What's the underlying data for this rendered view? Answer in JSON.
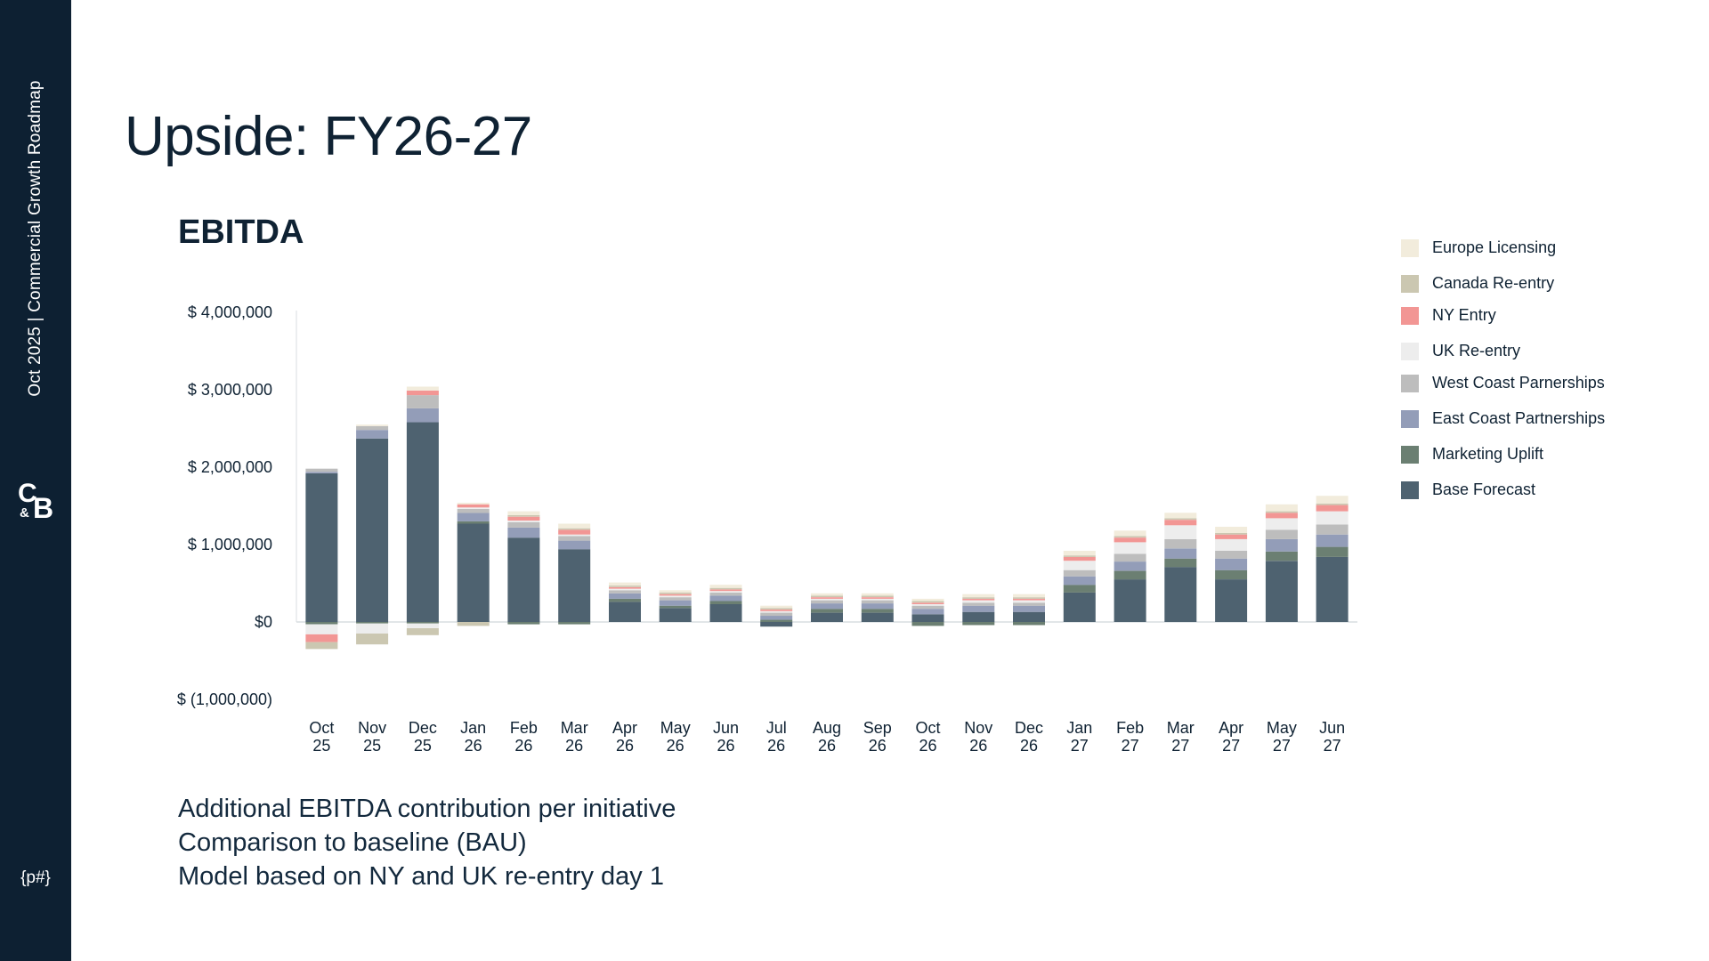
{
  "sidebar": {
    "title": "Oct 2025 | Commercial Growth Roadmap",
    "logo": {
      "c": "C",
      "amp": "&",
      "b": "B"
    },
    "page_number": "{p#}"
  },
  "page": {
    "title": "Upside: FY26-27",
    "chart_heading": "EBITDA",
    "notes": [
      "Additional EBITDA contribution per initiative",
      "Comparison to baseline (BAU)",
      "Model based on NY and UK re-entry day 1"
    ]
  },
  "chart_data": {
    "type": "bar",
    "stacked": true,
    "title": "EBITDA",
    "xlabel": "",
    "ylabel": "",
    "ylim": [
      -1000000,
      4000000
    ],
    "y_ticks": [
      4000000,
      3000000,
      2000000,
      1000000,
      0,
      -1000000
    ],
    "y_tick_labels": [
      "$ 4,000,000",
      "$ 3,000,000",
      "$ 2,000,000",
      "$ 1,000,000",
      "$0",
      "$ (1,000,000)"
    ],
    "categories": [
      [
        "Oct",
        "25"
      ],
      [
        "Nov",
        "25"
      ],
      [
        "Dec",
        "25"
      ],
      [
        "Jan",
        "26"
      ],
      [
        "Feb",
        "26"
      ],
      [
        "Mar",
        "26"
      ],
      [
        "Apr",
        "26"
      ],
      [
        "May",
        "26"
      ],
      [
        "Jun",
        "26"
      ],
      [
        "Jul",
        "26"
      ],
      [
        "Aug",
        "26"
      ],
      [
        "Sep",
        "26"
      ],
      [
        "Oct",
        "26"
      ],
      [
        "Nov",
        "26"
      ],
      [
        "Dec",
        "26"
      ],
      [
        "Jan",
        "27"
      ],
      [
        "Feb",
        "27"
      ],
      [
        "Mar",
        "27"
      ],
      [
        "Apr",
        "27"
      ],
      [
        "May",
        "27"
      ],
      [
        "Jun",
        "27"
      ]
    ],
    "legend_position": "right",
    "series": [
      {
        "name": "Base Forecast",
        "color": "#4e6270",
        "values": [
          1920000,
          2370000,
          2580000,
          1270000,
          1090000,
          940000,
          260000,
          180000,
          230000,
          -60000,
          120000,
          120000,
          100000,
          130000,
          130000,
          380000,
          550000,
          710000,
          550000,
          790000,
          840000
        ]
      },
      {
        "name": "Marketing Uplift",
        "color": "#6b7f72",
        "values": [
          -30000,
          -20000,
          -20000,
          30000,
          -30000,
          -30000,
          40000,
          30000,
          40000,
          30000,
          50000,
          50000,
          -50000,
          -40000,
          -40000,
          100000,
          110000,
          110000,
          120000,
          120000,
          130000
        ]
      },
      {
        "name": "East Coast Partnerships",
        "color": "#939db8",
        "values": [
          20000,
          110000,
          180000,
          110000,
          130000,
          110000,
          70000,
          70000,
          70000,
          50000,
          70000,
          70000,
          70000,
          80000,
          80000,
          110000,
          120000,
          130000,
          150000,
          160000,
          160000
        ]
      },
      {
        "name": "West Coast Parnerships",
        "color": "#bdbdbd",
        "values": [
          40000,
          50000,
          170000,
          50000,
          70000,
          60000,
          40000,
          40000,
          40000,
          40000,
          40000,
          40000,
          40000,
          40000,
          40000,
          80000,
          100000,
          120000,
          100000,
          120000,
          130000
        ]
      },
      {
        "name": "UK Re-entry",
        "color": "#ededed",
        "values": [
          -130000,
          -130000,
          -60000,
          20000,
          20000,
          20000,
          20000,
          20000,
          20000,
          20000,
          20000,
          20000,
          20000,
          30000,
          30000,
          120000,
          150000,
          180000,
          150000,
          150000,
          170000
        ]
      },
      {
        "name": "NY Entry",
        "color": "#f29694",
        "values": [
          -100000,
          0,
          60000,
          40000,
          50000,
          60000,
          20000,
          20000,
          20000,
          20000,
          20000,
          20000,
          20000,
          20000,
          20000,
          50000,
          60000,
          70000,
          60000,
          70000,
          80000
        ]
      },
      {
        "name": "Canada Re-entry",
        "color": "#cbc7b1",
        "values": [
          -90000,
          -140000,
          -90000,
          -50000,
          20000,
          20000,
          20000,
          20000,
          20000,
          20000,
          20000,
          20000,
          20000,
          20000,
          20000,
          20000,
          20000,
          20000,
          20000,
          20000,
          20000
        ]
      },
      {
        "name": "Europe Licensing",
        "color": "#f2ecdc",
        "values": [
          0,
          20000,
          50000,
          20000,
          50000,
          60000,
          40000,
          30000,
          40000,
          30000,
          30000,
          30000,
          30000,
          40000,
          40000,
          60000,
          70000,
          70000,
          80000,
          90000,
          100000
        ]
      }
    ]
  },
  "legend_order": [
    "Europe Licensing",
    "Canada Re-entry",
    "NY Entry",
    "UK Re-entry",
    "West Coast Parnerships",
    "East Coast Partnerships",
    "Marketing Uplift",
    "Base Forecast"
  ]
}
